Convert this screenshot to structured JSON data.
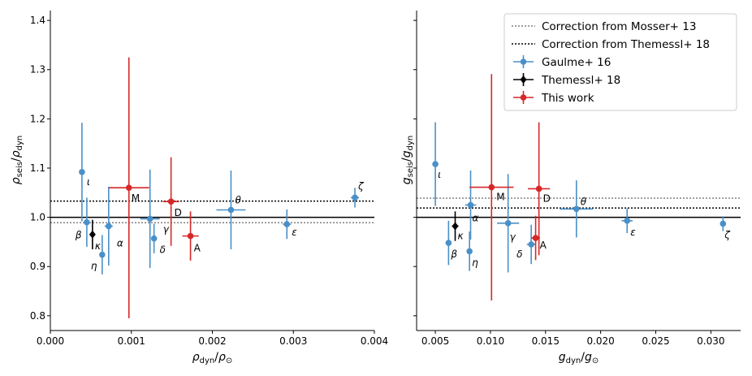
{
  "colors": {
    "gaulme": "#4a90c8",
    "themessl": "#000000",
    "thiswork": "#d62728",
    "mosser_line": "#808080",
    "themessl_line": "#000000"
  },
  "chart_data": [
    {
      "type": "scatter",
      "xlabel_main": "ρ",
      "xlabel_sub": "dyn",
      "xlabel_den_main": "ρ",
      "xlabel_den_sub": "⊙",
      "ylabel_main": "ρ",
      "ylabel_sub": "seis",
      "ylabel_den_main": "ρ",
      "ylabel_den_sub": "dyn",
      "xlim": [
        0.0,
        0.004
      ],
      "ylim": [
        0.77,
        1.42
      ],
      "xticks": [
        0.0,
        0.001,
        0.002,
        0.003,
        0.004
      ],
      "xtick_labels": [
        "0.000",
        "0.001",
        "0.002",
        "0.003",
        "0.004"
      ],
      "yticks": [
        0.8,
        0.9,
        1.0,
        1.1,
        1.2,
        1.3,
        1.4
      ],
      "ytick_labels": [
        "0.8",
        "0.9",
        "1.0",
        "1.1",
        "1.2",
        "1.3",
        "1.4"
      ],
      "hlines": [
        {
          "y": 1.0,
          "style": "solid",
          "color": "#000000"
        },
        {
          "y": 1.033,
          "style": "dotted",
          "color": "#000000"
        },
        {
          "y": 0.989,
          "style": "dotted",
          "color": "#808080"
        }
      ],
      "series": [
        {
          "name": "Gaulme+ 16",
          "color": "#4a90c8",
          "marker": "circle",
          "points": [
            {
              "label": "ι",
              "x": 0.00039,
              "y": 1.092,
              "xerr": 2e-05,
              "yerr_lo": 0.1,
              "yerr_hi": 0.1,
              "lx": 6,
              "ly": 16
            },
            {
              "label": "β",
              "x": 0.00045,
              "y": 0.99,
              "xerr": 3e-05,
              "yerr_lo": 0.05,
              "yerr_hi": 0.05,
              "lx": -14,
              "ly": 20
            },
            {
              "label": "η",
              "x": 0.00064,
              "y": 0.924,
              "xerr": 2e-05,
              "yerr_lo": 0.04,
              "yerr_hi": 0.04,
              "lx": -14,
              "ly": 18
            },
            {
              "label": "α",
              "x": 0.00072,
              "y": 0.982,
              "xerr": 5e-05,
              "yerr_lo": 0.08,
              "yerr_hi": 0.08,
              "lx": 10,
              "ly": 25
            },
            {
              "label": "γ",
              "x": 0.00123,
              "y": 0.997,
              "xerr": 0.00012,
              "yerr_lo": 0.1,
              "yerr_hi": 0.1,
              "lx": 16,
              "ly": 17
            },
            {
              "label": "δ",
              "x": 0.00128,
              "y": 0.957,
              "xerr": 3e-05,
              "yerr_lo": 0.03,
              "yerr_hi": 0.03,
              "lx": 7,
              "ly": 18
            },
            {
              "label": "θ",
              "x": 0.00223,
              "y": 1.015,
              "xerr": 0.00018,
              "yerr_lo": 0.08,
              "yerr_hi": 0.08,
              "lx": 5,
              "ly": -8
            },
            {
              "label": "ε",
              "x": 0.00292,
              "y": 0.986,
              "xerr": 5e-05,
              "yerr_lo": 0.03,
              "yerr_hi": 0.03,
              "lx": 6,
              "ly": 14
            },
            {
              "label": "ζ",
              "x": 0.00376,
              "y": 1.04,
              "xerr": 5e-05,
              "yerr_lo": 0.02,
              "yerr_hi": 0.02,
              "lx": 4,
              "ly": -10
            }
          ]
        },
        {
          "name": "Themessl+ 18",
          "color": "#000000",
          "marker": "diamond",
          "points": [
            {
              "label": "κ",
              "x": 0.00052,
              "y": 0.965,
              "xerr": 3e-05,
              "yerr_lo": 0.03,
              "yerr_hi": 0.03,
              "lx": 3,
              "ly": 18
            }
          ]
        },
        {
          "name": "This work",
          "color": "#d62728",
          "marker": "circle",
          "points": [
            {
              "label": "M",
              "x": 0.00097,
              "y": 1.06,
              "xerr": 0.00025,
              "yerr_lo": 0.265,
              "yerr_hi": 0.265,
              "lx": 3,
              "ly": 17
            },
            {
              "label": "D",
              "x": 0.00149,
              "y": 1.032,
              "xerr": 0.0001,
              "yerr_lo": 0.09,
              "yerr_hi": 0.09,
              "lx": 4,
              "ly": 18
            },
            {
              "label": "A",
              "x": 0.00173,
              "y": 0.962,
              "xerr": 0.0001,
              "yerr_lo": 0.05,
              "yerr_hi": 0.05,
              "lx": 4,
              "ly": 19
            }
          ]
        }
      ]
    },
    {
      "type": "scatter",
      "xlabel_main": "g",
      "xlabel_sub": "dyn",
      "xlabel_den_main": "g",
      "xlabel_den_sub": "⊙",
      "ylabel_main": "g",
      "ylabel_sub": "seis",
      "ylabel_den_main": "g",
      "ylabel_den_sub": "dyn",
      "xlim": [
        0.0033,
        0.0327
      ],
      "ylim": [
        0.77,
        1.42
      ],
      "xticks": [
        0.005,
        0.01,
        0.015,
        0.02,
        0.025,
        0.03
      ],
      "xtick_labels": [
        "0.005",
        "0.010",
        "0.015",
        "0.020",
        "0.025",
        "0.030"
      ],
      "yticks": [],
      "ytick_labels": [],
      "hlines": [
        {
          "y": 1.0,
          "style": "solid",
          "color": "#000000"
        },
        {
          "y": 1.039,
          "style": "dotted",
          "color": "#808080"
        },
        {
          "y": 1.019,
          "style": "dotted",
          "color": "#000000"
        }
      ],
      "series": [
        {
          "name": "Gaulme+ 16",
          "color": "#4a90c8",
          "marker": "circle",
          "points": [
            {
              "label": "ι",
              "x": 0.005,
              "y": 1.108,
              "xerr": 0.0002,
              "yerr_lo": 0.085,
              "yerr_hi": 0.085,
              "lx": 3,
              "ly": 17
            },
            {
              "label": "β",
              "x": 0.0062,
              "y": 0.948,
              "xerr": 0.0002,
              "yerr_lo": 0.045,
              "yerr_hi": 0.045,
              "lx": 3,
              "ly": 18
            },
            {
              "label": "η",
              "x": 0.0081,
              "y": 0.931,
              "xerr": 0.0002,
              "yerr_lo": 0.04,
              "yerr_hi": 0.04,
              "lx": 3,
              "ly": 18
            },
            {
              "label": "α",
              "x": 0.0082,
              "y": 1.025,
              "xerr": 0.0005,
              "yerr_lo": 0.07,
              "yerr_hi": 0.07,
              "lx": 2,
              "ly": 20
            },
            {
              "label": "γ",
              "x": 0.0116,
              "y": 0.988,
              "xerr": 0.001,
              "yerr_lo": 0.1,
              "yerr_hi": 0.1,
              "lx": 2,
              "ly": 21
            },
            {
              "label": "δ",
              "x": 0.0137,
              "y": 0.945,
              "xerr": 0.0004,
              "yerr_lo": 0.04,
              "yerr_hi": 0.04,
              "lx": -18,
              "ly": 16
            },
            {
              "label": "θ",
              "x": 0.0178,
              "y": 1.017,
              "xerr": 0.0015,
              "yerr_lo": 0.058,
              "yerr_hi": 0.058,
              "lx": 5,
              "ly": -5
            },
            {
              "label": "ε",
              "x": 0.0224,
              "y": 0.993,
              "xerr": 0.0005,
              "yerr_lo": 0.025,
              "yerr_hi": 0.025,
              "lx": 4,
              "ly": 18
            },
            {
              "label": "ζ",
              "x": 0.0311,
              "y": 0.987,
              "xerr": 0.0002,
              "yerr_lo": 0.015,
              "yerr_hi": 0.015,
              "lx": 2,
              "ly": 18
            }
          ]
        },
        {
          "name": "Themessl+ 18",
          "color": "#000000",
          "marker": "diamond",
          "points": [
            {
              "label": "κ",
              "x": 0.0068,
              "y": 0.982,
              "xerr": 0.0003,
              "yerr_lo": 0.03,
              "yerr_hi": 0.03,
              "lx": 3,
              "ly": 16
            }
          ]
        },
        {
          "name": "This work",
          "color": "#d62728",
          "marker": "circle",
          "points": [
            {
              "label": "M",
              "x": 0.0101,
              "y": 1.061,
              "xerr": 0.002,
              "yerr_lo": 0.23,
              "yerr_hi": 0.23,
              "lx": 6,
              "ly": 16
            },
            {
              "label": "D",
              "x": 0.0144,
              "y": 1.058,
              "xerr": 0.001,
              "yerr_lo": 0.135,
              "yerr_hi": 0.135,
              "lx": 5,
              "ly": 16
            },
            {
              "label": "A",
              "x": 0.0141,
              "y": 0.958,
              "xerr": 0.0004,
              "yerr_lo": 0.045,
              "yerr_hi": 0.045,
              "lx": 5,
              "ly": 13
            }
          ]
        }
      ]
    }
  ],
  "legend": {
    "location": "upper right of right panel",
    "entries": [
      {
        "label": "Correction from Mosser+ 13",
        "kind": "line",
        "style": "dotted",
        "color": "#808080"
      },
      {
        "label": "Correction from Themessl+ 18",
        "kind": "line",
        "style": "dotted",
        "color": "#000000"
      },
      {
        "label": "Gaulme+ 16",
        "kind": "marker",
        "marker": "circle",
        "color": "#4a90c8"
      },
      {
        "label": "Themessl+ 18",
        "kind": "marker",
        "marker": "diamond",
        "color": "#000000"
      },
      {
        "label": "This work",
        "kind": "marker",
        "marker": "circle",
        "color": "#d62728"
      }
    ]
  }
}
